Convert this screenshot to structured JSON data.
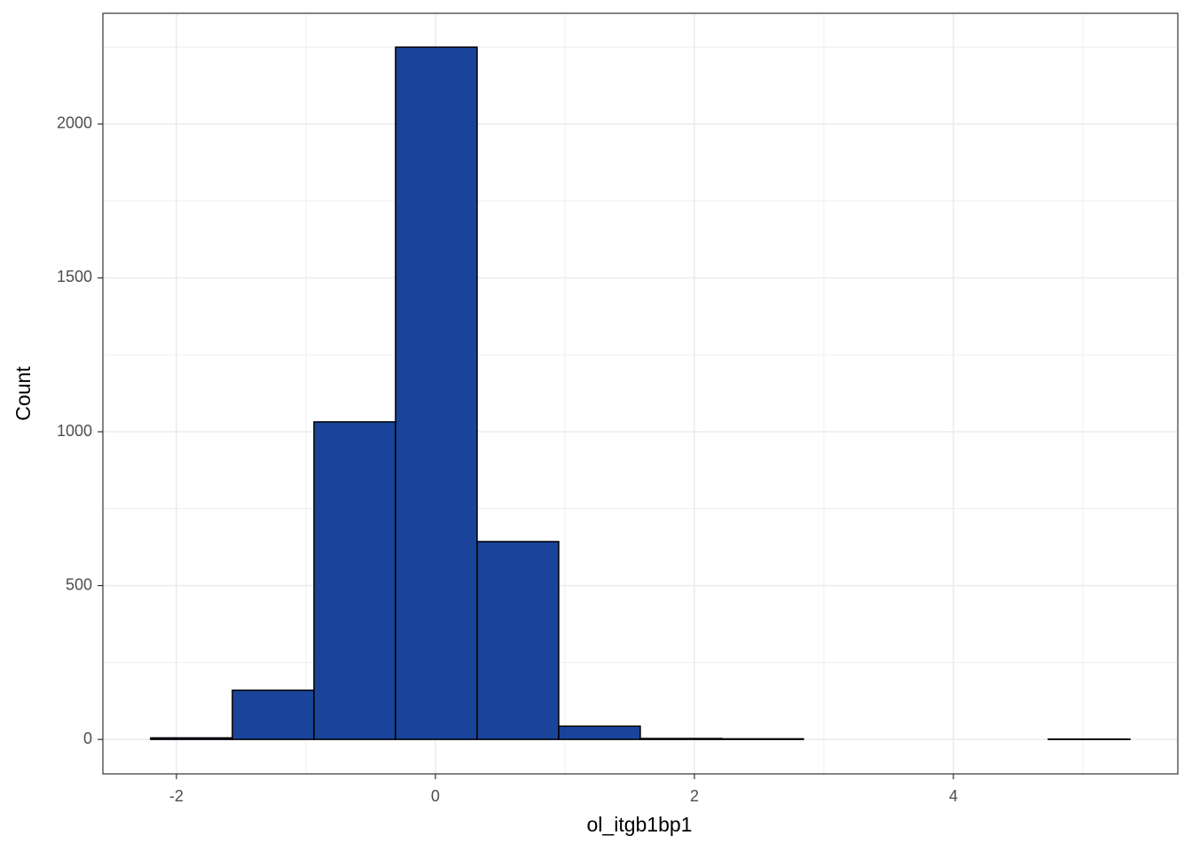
{
  "chart_data": {
    "type": "histogram",
    "xlabel": "ol_itgb1bp1",
    "ylabel": "Count",
    "bins": [
      -2.199,
      -1.568,
      -0.938,
      -0.308,
      0.322,
      0.952,
      1.582,
      2.212,
      2.842,
      3.473,
      4.103,
      4.733,
      5.363
    ],
    "values": [
      5,
      160,
      1032,
      2250,
      643,
      43,
      3,
      2,
      0,
      0,
      0,
      1
    ],
    "color": "#19449a",
    "edgecolor": "#000000",
    "xlim": [
      -2.568,
      5.733
    ],
    "ylim": [
      -112,
      2360
    ],
    "xticks": [
      -2,
      0,
      2,
      4
    ],
    "yticks": [
      0,
      500,
      1000,
      1500,
      2000
    ],
    "xminor": [
      -1,
      1,
      3,
      5
    ],
    "yminor": [
      250,
      750,
      1250,
      1750,
      2250
    ],
    "grid": true
  }
}
